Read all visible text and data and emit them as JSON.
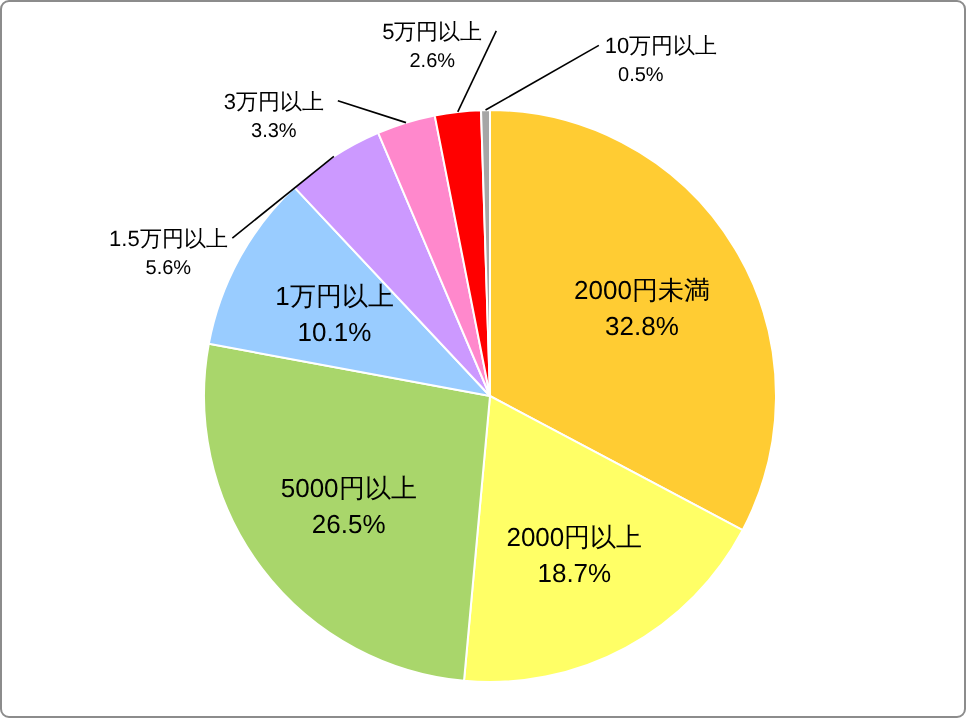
{
  "chart_data": {
    "type": "pie",
    "categories": [
      "2000円未満",
      "2000円以上",
      "5000円以上",
      "1万円以上",
      "1.5万円以上",
      "3万円以上",
      "5万円以上",
      "10万円以上"
    ],
    "values": [
      32.8,
      18.7,
      26.5,
      10.1,
      5.6,
      3.3,
      2.6,
      0.5
    ],
    "value_labels": [
      "32.8%",
      "18.7%",
      "26.5%",
      "10.1%",
      "5.6%",
      "3.3%",
      "2.6%",
      "0.5%"
    ],
    "colors": [
      "#ffcc33",
      "#ffff66",
      "#a9d66b",
      "#99ccff",
      "#cc99ff",
      "#ff88cc",
      "#ff0000",
      "#a6a6a6"
    ]
  }
}
